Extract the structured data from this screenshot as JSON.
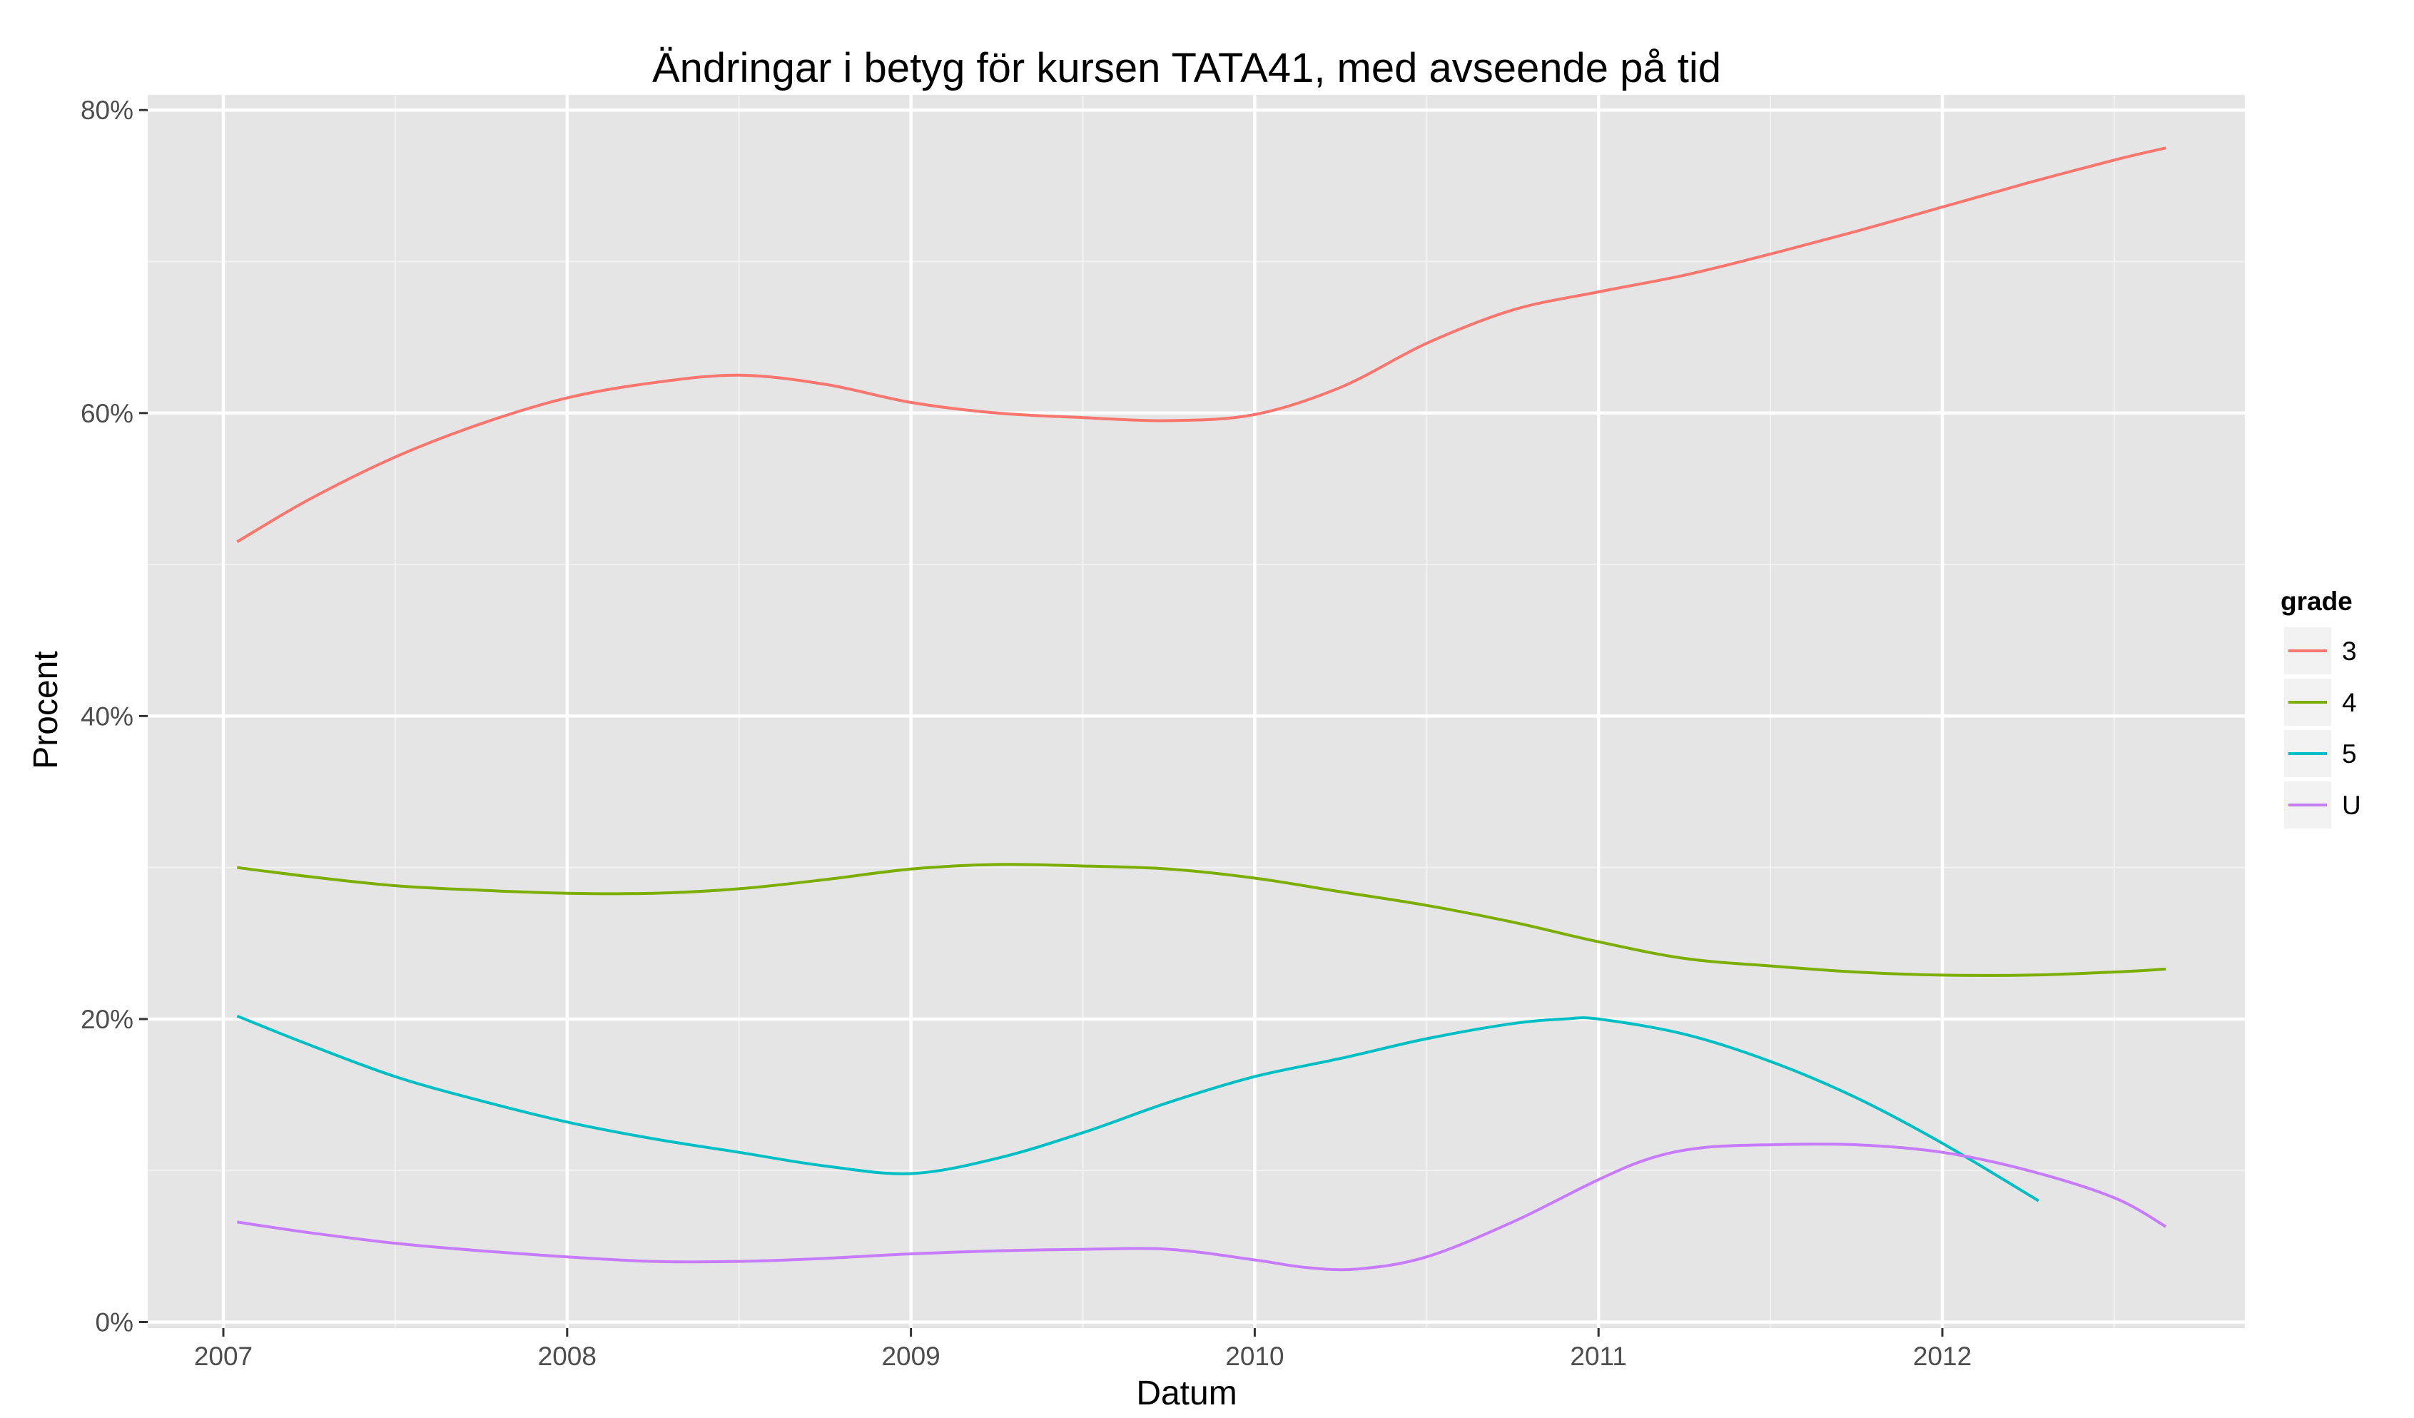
{
  "chart_data": {
    "type": "line",
    "title": "Ändringar i betyg för kursen TATA41, med avseende på tid",
    "xlabel": "Datum",
    "ylabel": "Procent",
    "xlim": [
      2006.78,
      2012.88
    ],
    "ylim": [
      -0.004,
      0.81
    ],
    "x_ticks": [
      2007,
      2008,
      2009,
      2010,
      2011,
      2012
    ],
    "x_tick_labels": [
      "2007",
      "2008",
      "2009",
      "2010",
      "2011",
      "2012"
    ],
    "y_ticks": [
      0,
      0.2,
      0.4,
      0.6,
      0.8
    ],
    "y_tick_labels": [
      "0%",
      "20%",
      "40%",
      "60%",
      "80%"
    ],
    "grid": true,
    "legend_title": "grade",
    "legend_position": "right",
    "series": [
      {
        "name": "3",
        "color": "#F8766D",
        "x": [
          2007.04,
          2007.25,
          2007.5,
          2007.75,
          2008.0,
          2008.25,
          2008.5,
          2008.75,
          2009.0,
          2009.25,
          2009.5,
          2009.75,
          2010.0,
          2010.25,
          2010.5,
          2010.75,
          2011.0,
          2011.25,
          2011.5,
          2011.75,
          2012.0,
          2012.25,
          2012.5,
          2012.65
        ],
        "values": [
          0.515,
          0.543,
          0.571,
          0.593,
          0.61,
          0.62,
          0.625,
          0.619,
          0.607,
          0.6,
          0.597,
          0.595,
          0.599,
          0.617,
          0.646,
          0.668,
          0.68,
          0.691,
          0.705,
          0.72,
          0.736,
          0.752,
          0.767,
          0.775
        ]
      },
      {
        "name": "4",
        "color": "#7CAE00",
        "x": [
          2007.04,
          2007.25,
          2007.5,
          2007.75,
          2008.0,
          2008.25,
          2008.5,
          2008.75,
          2009.0,
          2009.25,
          2009.5,
          2009.75,
          2010.0,
          2010.25,
          2010.5,
          2010.75,
          2011.0,
          2011.25,
          2011.5,
          2011.75,
          2012.0,
          2012.25,
          2012.5,
          2012.65
        ],
        "values": [
          0.3,
          0.294,
          0.288,
          0.285,
          0.283,
          0.283,
          0.286,
          0.292,
          0.299,
          0.302,
          0.301,
          0.299,
          0.293,
          0.284,
          0.275,
          0.264,
          0.251,
          0.24,
          0.235,
          0.231,
          0.229,
          0.229,
          0.231,
          0.233
        ]
      },
      {
        "name": "5",
        "color": "#00BFC4",
        "x": [
          2007.04,
          2007.25,
          2007.5,
          2007.75,
          2008.0,
          2008.25,
          2008.5,
          2008.75,
          2009.0,
          2009.25,
          2009.5,
          2009.75,
          2010.0,
          2010.25,
          2010.5,
          2010.75,
          2010.9,
          2011.0,
          2011.25,
          2011.5,
          2011.75,
          2012.0,
          2012.28
        ],
        "values": [
          0.202,
          0.183,
          0.162,
          0.146,
          0.132,
          0.121,
          0.112,
          0.103,
          0.098,
          0.108,
          0.125,
          0.145,
          0.162,
          0.174,
          0.187,
          0.197,
          0.2,
          0.2,
          0.19,
          0.172,
          0.148,
          0.118,
          0.08
        ]
      },
      {
        "name": "U",
        "color": "#C77CFF",
        "x": [
          2007.04,
          2007.25,
          2007.5,
          2007.75,
          2008.0,
          2008.25,
          2008.5,
          2008.75,
          2009.0,
          2009.25,
          2009.5,
          2009.75,
          2010.0,
          2010.15,
          2010.3,
          2010.5,
          2010.75,
          2011.0,
          2011.15,
          2011.3,
          2011.5,
          2011.75,
          2012.0,
          2012.25,
          2012.5,
          2012.65
        ],
        "values": [
          0.066,
          0.059,
          0.052,
          0.047,
          0.043,
          0.04,
          0.04,
          0.042,
          0.045,
          0.047,
          0.048,
          0.048,
          0.041,
          0.036,
          0.035,
          0.043,
          0.066,
          0.094,
          0.108,
          0.115,
          0.117,
          0.117,
          0.112,
          0.1,
          0.082,
          0.063
        ]
      }
    ]
  }
}
